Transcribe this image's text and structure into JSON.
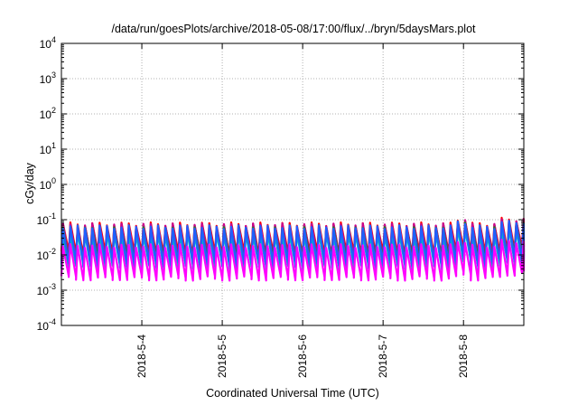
{
  "chart_data": {
    "type": "line",
    "title": "/data/run/goesPlots/archive/2018-05-08/17:00/flux/../bryn/5daysMars.plot",
    "xlabel": "Coordinated Universal Time (UTC)",
    "ylabel": "cGy/day",
    "yscale": "log",
    "ylim": [
      0.0001,
      10000
    ],
    "xlim": [
      0,
      5.75
    ],
    "x_ticks": [
      {
        "value": 1,
        "label": "2018-5-4"
      },
      {
        "value": 2,
        "label": "2018-5-5"
      },
      {
        "value": 3,
        "label": "2018-5-6"
      },
      {
        "value": 4,
        "label": "2018-5-7"
      },
      {
        "value": 5,
        "label": "2018-5-8"
      }
    ],
    "y_ticks": [
      {
        "value": 0.0001,
        "base": "10",
        "exp": "-4"
      },
      {
        "value": 0.001,
        "base": "10",
        "exp": "-3"
      },
      {
        "value": 0.01,
        "base": "10",
        "exp": "-2"
      },
      {
        "value": 0.1,
        "base": "10",
        "exp": "-1"
      },
      {
        "value": 1,
        "base": "10",
        "exp": "0"
      },
      {
        "value": 10,
        "base": "10",
        "exp": "1"
      },
      {
        "value": 100,
        "base": "10",
        "exp": "2"
      },
      {
        "value": 1000,
        "base": "10",
        "exp": "3"
      },
      {
        "value": 10000,
        "base": "10",
        "exp": "4"
      }
    ],
    "grid": true,
    "cycles_per_day": 11,
    "series": [
      {
        "color": "#ff0000",
        "peak": 0.075,
        "trough": 0.011
      },
      {
        "color": "#c8008c",
        "peak": 0.07,
        "trough": 0.0085
      },
      {
        "color": "#2a7a2a",
        "peak": 0.055,
        "trough": 0.0075
      },
      {
        "color": "#8a2be2",
        "peak": 0.048,
        "trough": 0.006
      },
      {
        "color": "#00c0c0",
        "peak": 0.04,
        "trough": 0.0045
      },
      {
        "color": "#1f5fff",
        "peak": 0.062,
        "trough": 0.0055
      },
      {
        "color": "#ff00ff",
        "peak": 0.018,
        "trough": 0.0022
      }
    ],
    "boost_ranges": [
      [
        4.85,
        5.05
      ],
      [
        5.45,
        5.75
      ]
    ],
    "boost_factor": 1.35
  }
}
